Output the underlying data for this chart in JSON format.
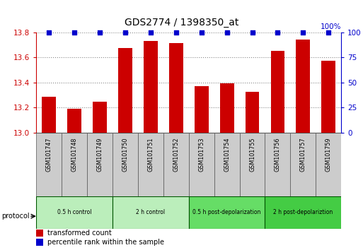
{
  "title": "GDS2774 / 1398350_at",
  "samples": [
    "GSM101747",
    "GSM101748",
    "GSM101749",
    "GSM101750",
    "GSM101751",
    "GSM101752",
    "GSM101753",
    "GSM101754",
    "GSM101755",
    "GSM101756",
    "GSM101757",
    "GSM101759"
  ],
  "bar_values": [
    13.285,
    13.19,
    13.245,
    13.675,
    13.73,
    13.715,
    13.37,
    13.395,
    13.325,
    13.655,
    13.745,
    13.575
  ],
  "percentile_values": [
    100,
    100,
    100,
    100,
    100,
    100,
    100,
    100,
    100,
    100,
    100,
    100
  ],
  "bar_color": "#cc0000",
  "percentile_color": "#0000cc",
  "ylim_left": [
    13.0,
    13.8
  ],
  "ylim_right": [
    0,
    100
  ],
  "yticks_left": [
    13.0,
    13.2,
    13.4,
    13.6,
    13.8
  ],
  "yticks_right": [
    0,
    25,
    50,
    75,
    100
  ],
  "grid_color": "#888888",
  "groups": [
    {
      "label": "0.5 h control",
      "start": 0,
      "end": 3,
      "color": "#bbeebb"
    },
    {
      "label": "2 h control",
      "start": 3,
      "end": 6,
      "color": "#bbeebb"
    },
    {
      "label": "0.5 h post-depolarization",
      "start": 6,
      "end": 9,
      "color": "#66dd66"
    },
    {
      "label": "2 h post-depolariztion",
      "start": 9,
      "end": 12,
      "color": "#44cc44"
    }
  ],
  "ylabel_left_color": "#cc0000",
  "ylabel_right_color": "#0000cc",
  "bg_color": "#ffffff",
  "sample_box_color": "#cccccc",
  "legend_items": [
    {
      "label": "transformed count",
      "color": "#cc0000"
    },
    {
      "label": "percentile rank within the sample",
      "color": "#0000cc"
    }
  ]
}
